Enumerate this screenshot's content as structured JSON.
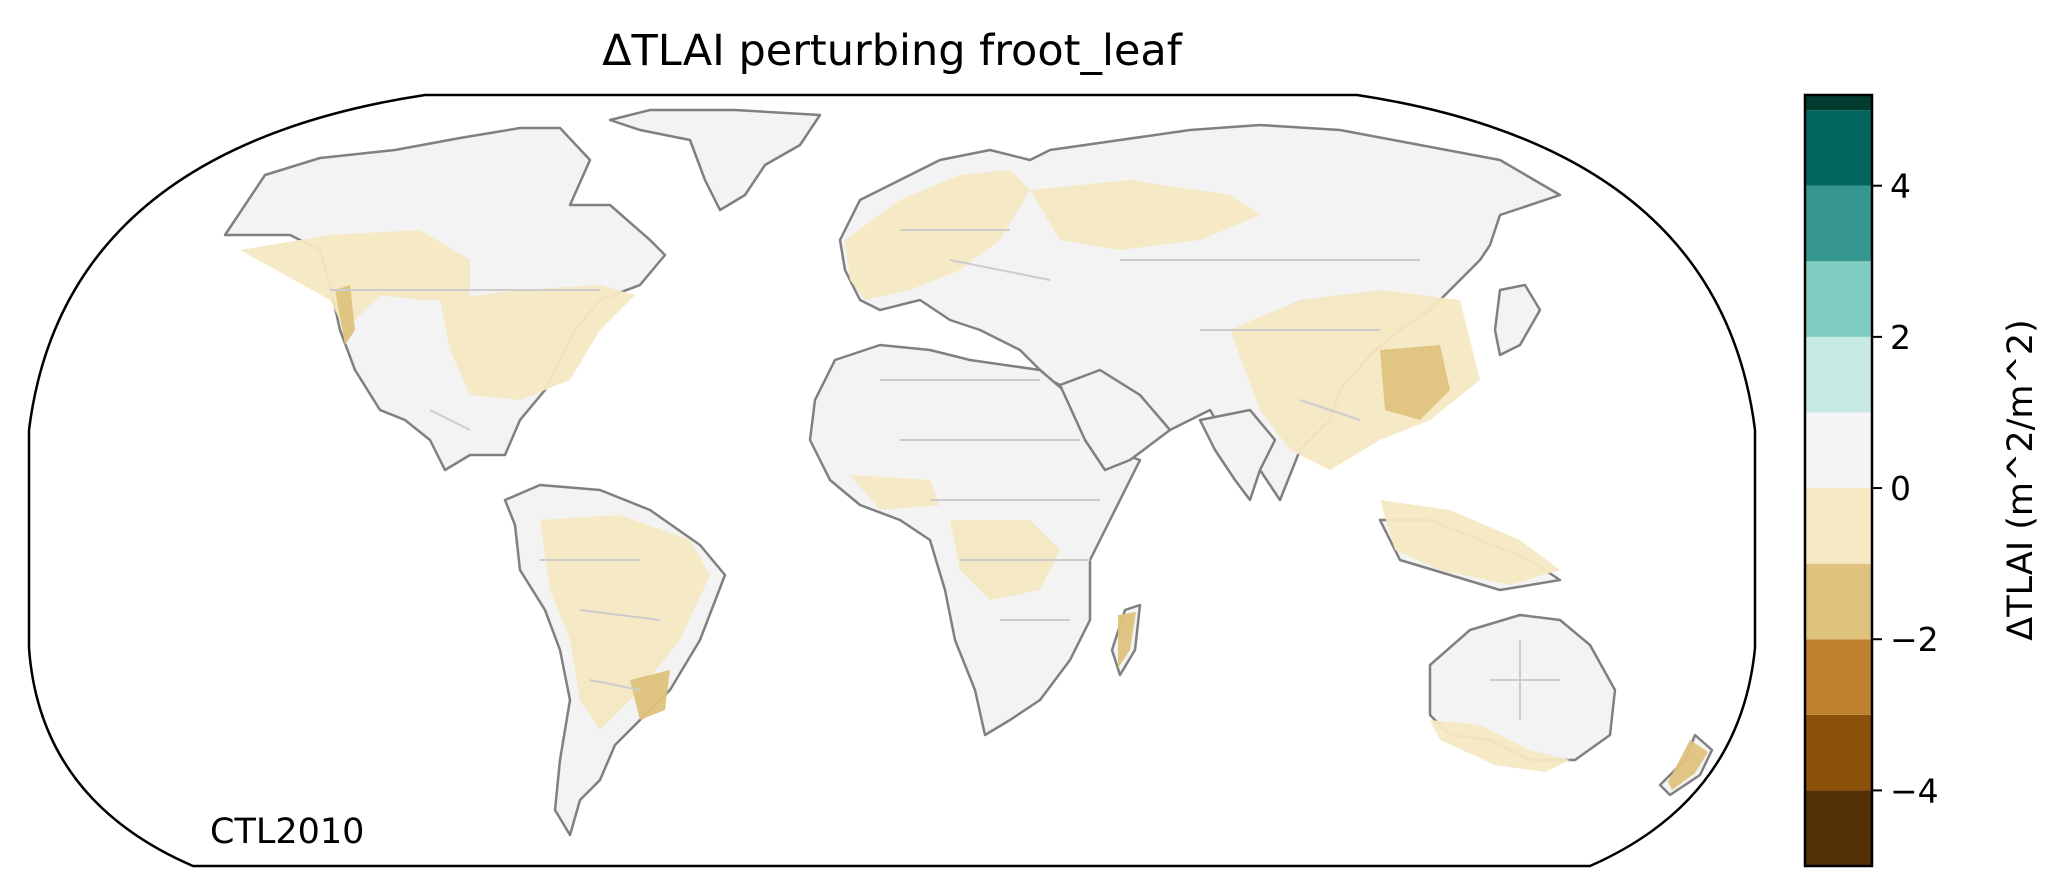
{
  "title": "ΔTLAI perturbing froot_leaf",
  "annotation": "CTL2010",
  "colorbar": {
    "label": "ΔTLAI (m^2/m^2)",
    "range": [
      -5,
      5
    ],
    "bins": [
      {
        "from": -5,
        "to": -4,
        "color": "#543005"
      },
      {
        "from": -4,
        "to": -3,
        "color": "#8c510a"
      },
      {
        "from": -3,
        "to": -2,
        "color": "#bf812d"
      },
      {
        "from": -2,
        "to": -1,
        "color": "#dfc27d"
      },
      {
        "from": -1,
        "to": 0,
        "color": "#f6e8c3"
      },
      {
        "from": 0,
        "to": 1,
        "color": "#f5f5f5"
      },
      {
        "from": 1,
        "to": 2,
        "color": "#c7eae5"
      },
      {
        "from": 2,
        "to": 3,
        "color": "#80cdc1"
      },
      {
        "from": 3,
        "to": 4,
        "color": "#35978f"
      },
      {
        "from": 4,
        "to": 5,
        "color": "#01665e"
      },
      {
        "from": 5,
        "to": 6,
        "color": "#003c30"
      }
    ],
    "ticks": [
      {
        "value": -4,
        "label": "−4"
      },
      {
        "value": -2,
        "label": "−2"
      },
      {
        "value": 0,
        "label": "0"
      },
      {
        "value": 2,
        "label": "2"
      },
      {
        "value": 4,
        "label": "4"
      }
    ]
  },
  "map": {
    "projection": "Robinson",
    "coastline_color": "#808080",
    "border_color": "#cccccc"
  }
}
